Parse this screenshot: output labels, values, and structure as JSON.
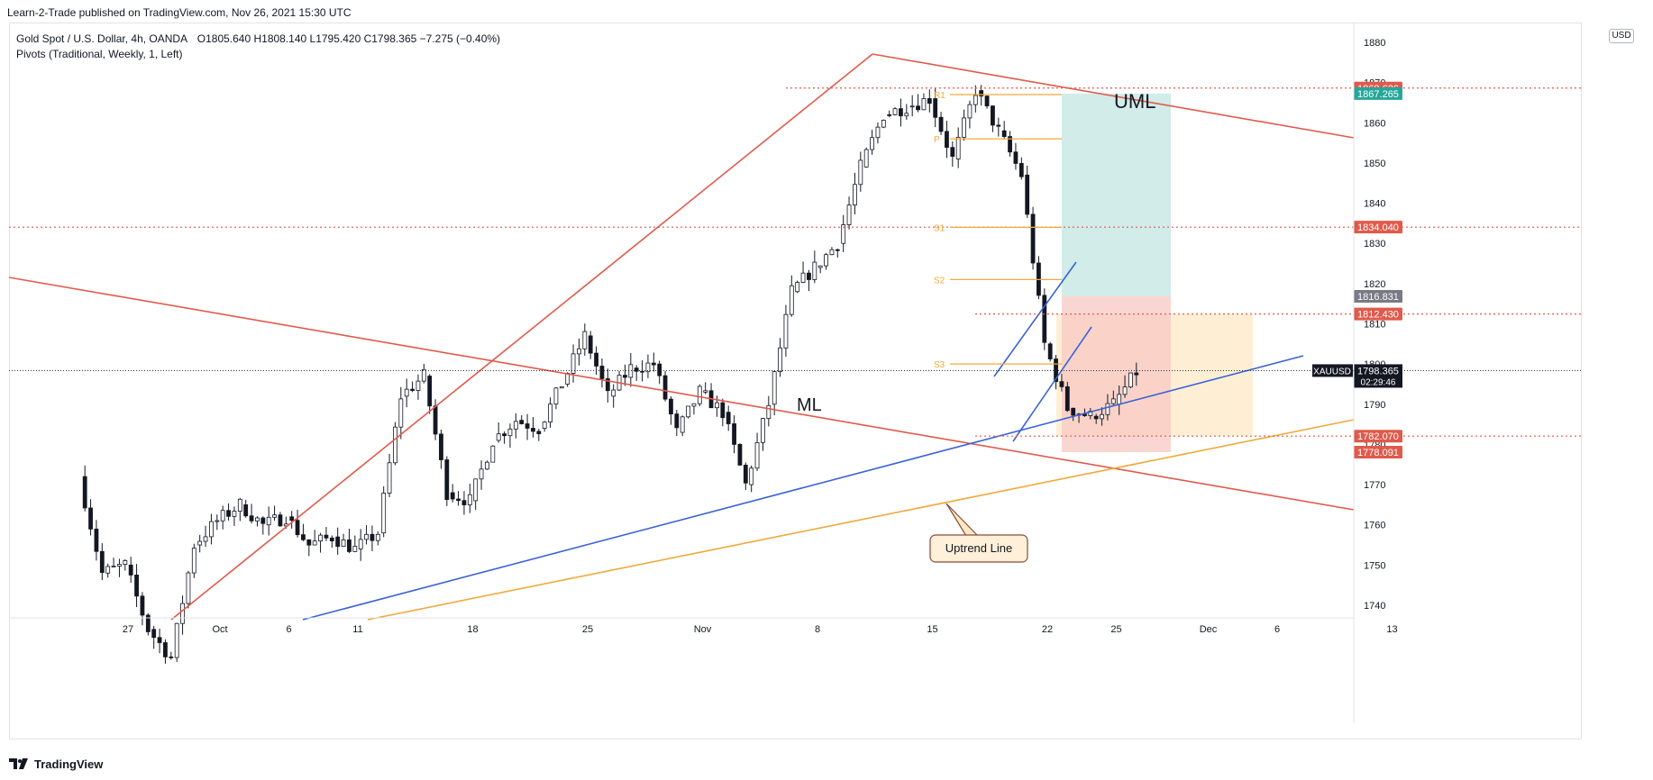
{
  "header": {
    "publisher": "Learn-2-Trade published on TradingView.com, Nov 26, 2021 15:30 UTC"
  },
  "legend": {
    "symbol": "Gold Spot / U.S. Dollar, 4h, OANDA",
    "ohlc": "O1805.640  H1808.140  L1795.420  C1798.365  −7.275 (−0.40%)",
    "indicator": "Pivots (Traditional, Weekly, 1, Left)"
  },
  "axis": {
    "currency": "USD",
    "current_label": "XAUUSD",
    "current_price": "1798.365",
    "countdown": "02:29:46"
  },
  "footer": {
    "brand": "TradingView"
  },
  "colors": {
    "up": "#ffffff",
    "down": "#131722",
    "channel": "#e05a4b",
    "blue_line": "#3a62d7",
    "uptrend": "#f0a93c",
    "pivot": "#f0a93c",
    "target_zone": "#b2dfdb",
    "stop_zone": "#f8c8c4",
    "range_zone": "#fde9c6"
  },
  "chart_data": {
    "type": "candlestick",
    "ylim": [
      1732,
      1883
    ],
    "y_ticks": [
      1740,
      1750,
      1760,
      1770,
      1780,
      1790,
      1800,
      1810,
      1820,
      1830,
      1840,
      1850,
      1860,
      1870,
      1880
    ],
    "x_ticks": [
      {
        "label": "27",
        "date": "2021-09-27"
      },
      {
        "label": "Oct",
        "date": "2021-10-01"
      },
      {
        "label": "6",
        "date": "2021-10-06"
      },
      {
        "label": "11",
        "date": "2021-10-11"
      },
      {
        "label": "18",
        "date": "2021-10-18"
      },
      {
        "label": "25",
        "date": "2021-10-25"
      },
      {
        "label": "Nov",
        "date": "2021-11-01"
      },
      {
        "label": "8",
        "date": "2021-11-08"
      },
      {
        "label": "15",
        "date": "2021-11-15"
      },
      {
        "label": "22",
        "date": "2021-11-22"
      },
      {
        "label": "25",
        "date": "2021-11-25"
      },
      {
        "label": "Dec",
        "date": "2021-12-01"
      },
      {
        "label": "6",
        "date": "2021-12-06"
      },
      {
        "label": "13",
        "date": "2021-12-13"
      }
    ],
    "price_path": [
      [
        "2021-09-23",
        1772
      ],
      [
        "2021-09-24",
        1748
      ],
      [
        "2021-09-27",
        1750
      ],
      [
        "2021-09-28",
        1734
      ],
      [
        "2021-09-29",
        1727
      ],
      [
        "2021-09-30",
        1755
      ],
      [
        "2021-10-01",
        1761
      ],
      [
        "2021-10-04",
        1765
      ],
      [
        "2021-10-05",
        1760
      ],
      [
        "2021-10-06",
        1762
      ],
      [
        "2021-10-07",
        1755
      ],
      [
        "2021-10-08",
        1757
      ],
      [
        "2021-10-11",
        1754
      ],
      [
        "2021-10-12",
        1758
      ],
      [
        "2021-10-13",
        1792
      ],
      [
        "2021-10-14",
        1797
      ],
      [
        "2021-10-15",
        1768
      ],
      [
        "2021-10-18",
        1766
      ],
      [
        "2021-10-19",
        1781
      ],
      [
        "2021-10-20",
        1786
      ],
      [
        "2021-10-21",
        1784
      ],
      [
        "2021-10-22",
        1795
      ],
      [
        "2021-10-25",
        1807
      ],
      [
        "2021-10-26",
        1792
      ],
      [
        "2021-10-27",
        1799
      ],
      [
        "2021-10-28",
        1800
      ],
      [
        "2021-10-29",
        1783
      ],
      [
        "2021-11-01",
        1793
      ],
      [
        "2021-11-02",
        1788
      ],
      [
        "2021-11-03",
        1770
      ],
      [
        "2021-11-04",
        1790
      ],
      [
        "2021-11-05",
        1818
      ],
      [
        "2021-11-08",
        1824
      ],
      [
        "2021-11-09",
        1830
      ],
      [
        "2021-11-10",
        1849
      ],
      [
        "2021-11-11",
        1862
      ],
      [
        "2021-11-12",
        1864
      ],
      [
        "2021-11-15",
        1866
      ],
      [
        "2021-11-16",
        1851
      ],
      [
        "2021-11-17",
        1868
      ],
      [
        "2021-11-18",
        1858
      ],
      [
        "2021-11-19",
        1847
      ],
      [
        "2021-11-22",
        1805
      ],
      [
        "2021-11-23",
        1789
      ],
      [
        "2021-11-24",
        1787
      ],
      [
        "2021-11-25",
        1790
      ],
      [
        "2021-11-26",
        1798
      ]
    ],
    "levels": [
      {
        "value": 1868.626,
        "label": "1868.626",
        "color": "#e05a4b",
        "dotted": true
      },
      {
        "value": 1867.265,
        "label": "1867.265",
        "color": "#26a69a",
        "dotted": false
      },
      {
        "value": 1834.04,
        "label": "1834.040",
        "color": "#e05a4b",
        "dotted": true
      },
      {
        "value": 1816.831,
        "label": "1816.831",
        "color": "#787b86",
        "dotted": false
      },
      {
        "value": 1812.43,
        "label": "1812.430",
        "color": "#e05a4b",
        "dotted": true
      },
      {
        "value": 1782.07,
        "label": "1782.070",
        "color": "#e05a4b",
        "dotted": true
      },
      {
        "value": 1778.091,
        "label": "1778.091",
        "color": "#e05a4b",
        "dotted": false
      }
    ],
    "pivots": [
      {
        "name": "R1",
        "value": 1867
      },
      {
        "name": "P",
        "value": 1856
      },
      {
        "name": "S1",
        "value": 1834
      },
      {
        "name": "S2",
        "value": 1821
      },
      {
        "name": "S3",
        "value": 1800
      }
    ],
    "annotations": {
      "uml": "UML",
      "ml": "ML",
      "uptrend": "Uptrend Line"
    }
  }
}
